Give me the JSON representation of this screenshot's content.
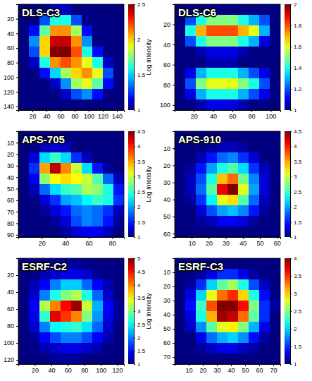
{
  "chart_data": [
    {
      "type": "heatmap",
      "title": "DLS-C3",
      "color": "jet",
      "xlim": [
        0,
        150
      ],
      "ylim": [
        0,
        145
      ],
      "xticks": [
        20,
        40,
        60,
        80,
        100,
        120,
        140
      ],
      "yticks": [
        20,
        40,
        60,
        80,
        100,
        120,
        140
      ],
      "colorbar": {
        "lim": [
          1,
          2.5
        ],
        "ticks": [
          1,
          1.5,
          2,
          2.5
        ],
        "label": "Log Intensity"
      },
      "cells": [
        [
          1,
          1,
          1,
          1.1,
          1.1,
          1,
          1,
          1,
          1,
          1
        ],
        [
          1,
          1,
          1.3,
          1.6,
          1.6,
          1.3,
          1,
          1,
          1,
          1
        ],
        [
          1,
          1.2,
          1.7,
          2.1,
          2.1,
          1.8,
          1.2,
          1,
          1,
          1
        ],
        [
          1,
          1.4,
          2,
          2.4,
          2.4,
          2.1,
          1.4,
          1,
          1,
          1
        ],
        [
          1,
          1.3,
          2,
          2.5,
          2.5,
          2.2,
          1.6,
          1.2,
          1,
          1
        ],
        [
          1,
          1.1,
          1.6,
          2.1,
          2.2,
          2.1,
          1.9,
          1.6,
          1.1,
          1
        ],
        [
          1,
          1,
          1.2,
          1.5,
          1.8,
          2,
          2.1,
          1.9,
          1.3,
          1
        ],
        [
          1,
          1,
          1,
          1.1,
          1.4,
          1.8,
          1.9,
          1.7,
          1.2,
          1
        ],
        [
          1,
          1,
          1,
          1,
          1.1,
          1.3,
          1.4,
          1.2,
          1,
          1
        ],
        [
          1,
          1,
          1,
          1,
          1,
          1,
          1,
          1,
          1,
          1
        ]
      ]
    },
    {
      "type": "heatmap",
      "title": "DLS-C6",
      "color": "jet",
      "xlim": [
        0,
        110
      ],
      "ylim": [
        0,
        105
      ],
      "xticks": [
        20,
        40,
        60,
        80,
        100
      ],
      "yticks": [
        20,
        40,
        60,
        80,
        100
      ],
      "colorbar": {
        "lim": [
          1,
          2
        ],
        "ticks": [
          1,
          1.2,
          1.4,
          1.6,
          1.8,
          2
        ]
      },
      "cells": [
        [
          1,
          1,
          1,
          1,
          1,
          1,
          1,
          1,
          1,
          1
        ],
        [
          1,
          1.2,
          1.4,
          1.5,
          1.5,
          1.5,
          1.4,
          1.3,
          1.2,
          1
        ],
        [
          1,
          1.4,
          1.7,
          1.8,
          1.8,
          1.8,
          1.7,
          1.6,
          1.3,
          1
        ],
        [
          1,
          1.2,
          1.4,
          1.5,
          1.5,
          1.5,
          1.4,
          1.3,
          1.1,
          1
        ],
        [
          1,
          1,
          1.05,
          1.1,
          1.1,
          1.1,
          1.05,
          1,
          1,
          1
        ],
        [
          1,
          1,
          1,
          1.05,
          1.05,
          1.05,
          1,
          1,
          1,
          1
        ],
        [
          1,
          1.1,
          1.3,
          1.4,
          1.4,
          1.4,
          1.3,
          1.2,
          1.1,
          1
        ],
        [
          1,
          1.2,
          1.5,
          1.6,
          1.6,
          1.6,
          1.5,
          1.4,
          1.2,
          1
        ],
        [
          1,
          1.1,
          1.3,
          1.4,
          1.4,
          1.4,
          1.3,
          1.2,
          1.1,
          1
        ],
        [
          1,
          1,
          1.05,
          1.1,
          1.1,
          1.1,
          1.05,
          1,
          1,
          1
        ]
      ]
    },
    {
      "type": "heatmap",
      "title": "APS-705",
      "color": "jet",
      "xlim": [
        0,
        90
      ],
      "ylim": [
        0,
        92
      ],
      "xticks": [
        20,
        40,
        60,
        80
      ],
      "yticks": [
        10,
        20,
        30,
        40,
        50,
        60,
        70,
        80,
        90
      ],
      "colorbar": {
        "lim": [
          1,
          4.5
        ],
        "ticks": [
          1,
          1.5,
          2,
          2.5,
          3,
          3.5,
          4,
          4.5
        ],
        "label": "Log Intensity"
      },
      "cells": [
        [
          1,
          1,
          1,
          1,
          1,
          1,
          1,
          1,
          1,
          1
        ],
        [
          1,
          1,
          1.2,
          1.3,
          1.2,
          1,
          1,
          1,
          1,
          1
        ],
        [
          1,
          1.3,
          2.2,
          2.5,
          2.2,
          1.6,
          1.2,
          1,
          1,
          1
        ],
        [
          1,
          1.6,
          3.5,
          4.3,
          3.6,
          3,
          2.2,
          1.5,
          1.1,
          1
        ],
        [
          1,
          1.4,
          2.8,
          3.2,
          3.3,
          3.2,
          3,
          2.6,
          1.8,
          1.2
        ],
        [
          1,
          1.2,
          1.8,
          2.2,
          2.5,
          2.6,
          2.9,
          2.8,
          2.4,
          1.5
        ],
        [
          1,
          1,
          1.3,
          1.6,
          2,
          2.1,
          2.3,
          2.5,
          2.4,
          1.6
        ],
        [
          1,
          1,
          1.1,
          1.3,
          1.5,
          1.8,
          1.9,
          1.8,
          1.6,
          1.2
        ],
        [
          1,
          1,
          1,
          1.1,
          1.3,
          1.7,
          1.9,
          1.8,
          1.5,
          1.1
        ],
        [
          1,
          1,
          1,
          1,
          1.1,
          1.3,
          1.4,
          1.4,
          1.2,
          1
        ]
      ]
    },
    {
      "type": "heatmap",
      "title": "APS-910",
      "color": "jet",
      "xlim": [
        0,
        62
      ],
      "ylim": [
        0,
        62
      ],
      "xticks": [
        10,
        20,
        30,
        40,
        50,
        60
      ],
      "yticks": [
        10,
        20,
        30,
        40,
        50,
        60
      ],
      "colorbar": {
        "lim": [
          1,
          4.5
        ],
        "ticks": [
          1,
          1.5,
          2,
          2.5,
          3,
          3.5,
          4,
          4.5
        ]
      },
      "cells": [
        [
          1,
          1,
          1,
          1,
          1,
          1,
          1,
          1,
          1,
          1
        ],
        [
          1,
          1,
          1,
          1.1,
          1.2,
          1.2,
          1.1,
          1,
          1,
          1
        ],
        [
          1,
          1,
          1.2,
          1.5,
          1.8,
          1.9,
          1.6,
          1.3,
          1,
          1
        ],
        [
          1,
          1.1,
          1.5,
          2,
          2.4,
          2.6,
          2.2,
          1.6,
          1.2,
          1
        ],
        [
          1,
          1.2,
          1.7,
          2.4,
          3.4,
          3.7,
          2.7,
          1.9,
          1.3,
          1
        ],
        [
          1,
          1.2,
          1.8,
          2.6,
          4.1,
          4.5,
          3.1,
          2,
          1.3,
          1
        ],
        [
          1,
          1.1,
          1.6,
          2.3,
          3.1,
          3.3,
          2.6,
          1.8,
          1.2,
          1
        ],
        [
          1,
          1,
          1.3,
          1.7,
          2,
          2.1,
          1.9,
          1.5,
          1.1,
          1
        ],
        [
          1,
          1,
          1.1,
          1.2,
          1.4,
          1.4,
          1.3,
          1.1,
          1,
          1
        ],
        [
          1,
          1,
          1,
          1,
          1,
          1,
          1,
          1,
          1,
          1
        ]
      ]
    },
    {
      "type": "heatmap",
      "title": "ESRF-C2",
      "color": "jet",
      "xlim": [
        0,
        128
      ],
      "ylim": [
        0,
        125
      ],
      "xticks": [
        20,
        40,
        60,
        80,
        100,
        120
      ],
      "yticks": [
        20,
        40,
        60,
        80,
        100,
        120
      ],
      "colorbar": {
        "lim": [
          1,
          5
        ],
        "ticks": [
          1,
          1.5,
          2,
          2.5,
          3,
          3.5,
          4,
          4.5,
          5
        ],
        "label": "Log Intensity"
      },
      "cells": [
        [
          1,
          1,
          1,
          1.1,
          1.1,
          1.1,
          1,
          1,
          1,
          1
        ],
        [
          1,
          1,
          1.2,
          1.3,
          1.4,
          1.4,
          1.3,
          1.1,
          1,
          1
        ],
        [
          1,
          1.2,
          1.5,
          2,
          2.3,
          2.3,
          1.9,
          1.5,
          1.2,
          1
        ],
        [
          1,
          1.3,
          2,
          2.6,
          3,
          3.2,
          2.6,
          1.9,
          1.3,
          1
        ],
        [
          1,
          1.5,
          3.2,
          4,
          4.5,
          4.9,
          3.3,
          2.2,
          1.5,
          1.1
        ],
        [
          1,
          1.4,
          2.7,
          4.6,
          4.3,
          4,
          3,
          2.1,
          1.4,
          1.1
        ],
        [
          1,
          1.3,
          2,
          2.5,
          2.6,
          2.7,
          2.4,
          1.9,
          1.3,
          1
        ],
        [
          1,
          1.1,
          1.5,
          1.8,
          2,
          2,
          1.8,
          1.5,
          1.2,
          1
        ],
        [
          1,
          1,
          1.2,
          1.3,
          1.4,
          1.4,
          1.3,
          1.2,
          1,
          1
        ],
        [
          1,
          1,
          1,
          1.1,
          1.1,
          1.1,
          1,
          1,
          1,
          1
        ]
      ]
    },
    {
      "type": "heatmap",
      "title": "ESRF-C3",
      "color": "jet",
      "xlim": [
        0,
        75
      ],
      "ylim": [
        0,
        75
      ],
      "xticks": [
        10,
        20,
        30,
        40,
        50,
        60,
        70
      ],
      "yticks": [
        10,
        20,
        30,
        40,
        50,
        60,
        70
      ],
      "colorbar": {
        "lim": [
          1,
          4
        ],
        "ticks": [
          1,
          1.5,
          2,
          2.5,
          3,
          3.5,
          4
        ]
      },
      "cells": [
        [
          1,
          1,
          1,
          1,
          1,
          1,
          1,
          1,
          1,
          1
        ],
        [
          1,
          1,
          1.1,
          1.3,
          1.5,
          1.5,
          1.3,
          1.1,
          1,
          1
        ],
        [
          1,
          1.1,
          1.5,
          2,
          2.4,
          2.6,
          2.2,
          1.6,
          1.2,
          1
        ],
        [
          1,
          1.3,
          2,
          2.8,
          3.3,
          3.5,
          3,
          2.2,
          1.4,
          1
        ],
        [
          1,
          1.4,
          2.3,
          3.4,
          4,
          4,
          3.6,
          2.5,
          1.5,
          1.1
        ],
        [
          1,
          1.3,
          2.2,
          3.1,
          3.9,
          3.8,
          3.3,
          2.4,
          1.5,
          1
        ],
        [
          1,
          1.2,
          1.8,
          2.4,
          2.8,
          2.9,
          2.5,
          1.9,
          1.3,
          1
        ],
        [
          1,
          1,
          1.3,
          1.7,
          1.9,
          2,
          1.8,
          1.4,
          1.1,
          1
        ],
        [
          1,
          1,
          1.1,
          1.2,
          1.3,
          1.3,
          1.2,
          1.1,
          1,
          1
        ],
        [
          1,
          1,
          1,
          1,
          1,
          1,
          1,
          1,
          1,
          1
        ]
      ]
    }
  ]
}
